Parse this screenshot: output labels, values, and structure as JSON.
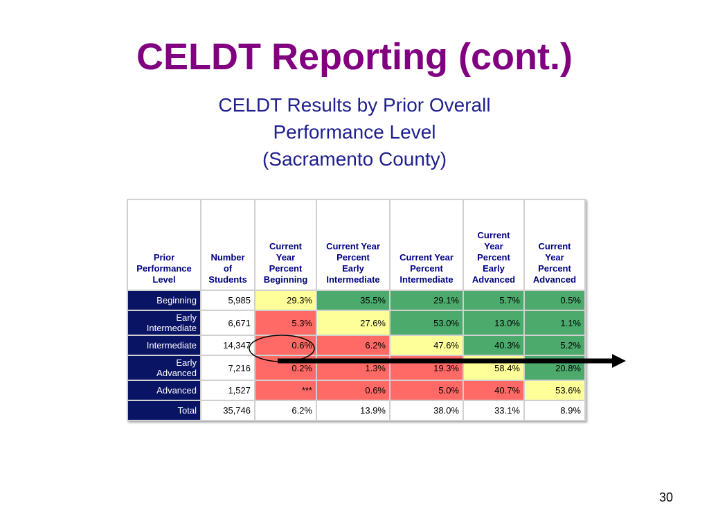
{
  "slide": {
    "title": "CELDT Reporting (cont.)",
    "subtitle_lines": [
      "CELDT Results by Prior Overall",
      "Performance Level",
      "(Sacramento County)"
    ],
    "page_number": "30"
  },
  "colors": {
    "title": "#800080",
    "subtitle": "#1f1f8f",
    "row_header_bg": "#0a1464",
    "yellow": "#ffff99",
    "green": "#4caa6c",
    "red": "#ff6a66"
  },
  "table": {
    "headers": [
      [
        "Prior",
        "Performance",
        "Level"
      ],
      [
        "Number",
        "of",
        "Students"
      ],
      [
        "Current",
        "Year",
        "Percent",
        "Beginning"
      ],
      [
        "Current Year",
        "Percent",
        "Early",
        "Intermediate"
      ],
      [
        "Current Year",
        "Percent",
        "Intermediate"
      ],
      [
        "Current",
        "Year",
        "Percent",
        "Early",
        "Advanced"
      ],
      [
        "Current",
        "Year",
        "Percent",
        "Advanced"
      ]
    ],
    "rows": [
      {
        "label": [
          "Beginning"
        ],
        "students": "5,985",
        "cells": [
          {
            "v": "29.3%",
            "c": "yellow"
          },
          {
            "v": "35.5%",
            "c": "green"
          },
          {
            "v": "29.1%",
            "c": "green"
          },
          {
            "v": "5.7%",
            "c": "green"
          },
          {
            "v": "0.5%",
            "c": "green"
          }
        ]
      },
      {
        "label": [
          "Early",
          "Intermediate"
        ],
        "students": "6,671",
        "cells": [
          {
            "v": "5.3%",
            "c": "red"
          },
          {
            "v": "27.6%",
            "c": "yellow"
          },
          {
            "v": "53.0%",
            "c": "green"
          },
          {
            "v": "13.0%",
            "c": "green"
          },
          {
            "v": "1.1%",
            "c": "green"
          }
        ]
      },
      {
        "label": [
          "Intermediate"
        ],
        "students": "14,347",
        "cells": [
          {
            "v": "0.6%",
            "c": "red"
          },
          {
            "v": "6.2%",
            "c": "red"
          },
          {
            "v": "47.6%",
            "c": "yellow"
          },
          {
            "v": "40.3%",
            "c": "green"
          },
          {
            "v": "5.2%",
            "c": "green"
          }
        ]
      },
      {
        "label": [
          "Early",
          "Advanced"
        ],
        "students": "7,216",
        "cells": [
          {
            "v": "0.2%",
            "c": "red"
          },
          {
            "v": "1.3%",
            "c": "red"
          },
          {
            "v": "19.3%",
            "c": "red"
          },
          {
            "v": "58.4%",
            "c": "yellow"
          },
          {
            "v": "20.8%",
            "c": "green"
          }
        ]
      },
      {
        "label": [
          "Advanced"
        ],
        "students": "1,527",
        "cells": [
          {
            "v": "***",
            "c": "red"
          },
          {
            "v": "0.6%",
            "c": "red"
          },
          {
            "v": "5.0%",
            "c": "red"
          },
          {
            "v": "40.7%",
            "c": "red"
          },
          {
            "v": "53.6%",
            "c": "yellow"
          }
        ]
      },
      {
        "label": [
          "Total"
        ],
        "students": "35,746",
        "cells": [
          {
            "v": "6.2%",
            "c": "white"
          },
          {
            "v": "13.9%",
            "c": "white"
          },
          {
            "v": "38.0%",
            "c": "white"
          },
          {
            "v": "33.1%",
            "c": "white"
          },
          {
            "v": "8.9%",
            "c": "white"
          }
        ]
      }
    ]
  },
  "annotations": {
    "circle_icon": "ellipse-highlight-icon",
    "arrow_icon": "right-arrow-icon"
  }
}
